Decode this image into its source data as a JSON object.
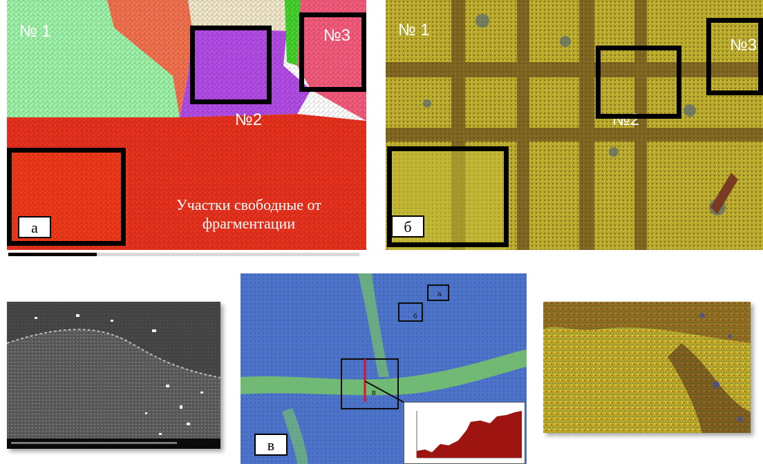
{
  "panel_a": {
    "labels": {
      "n1": "№ 1",
      "n2": "№2",
      "n3": "№3"
    },
    "free_area_label": "Участки свободные от фрагментации",
    "letter": "а"
  },
  "panel_b": {
    "labels": {
      "n1": "№ 1",
      "n2": "№2",
      "n3": "№3"
    },
    "letter": "б"
  },
  "panel_c": {
    "letter": "в",
    "sub_labels": {
      "a": "а",
      "b": "б",
      "c": "в"
    }
  },
  "colors": {
    "grain_green": "#9df2a8",
    "grain_orange": "#f2724f",
    "grain_violet": "#b34ce6",
    "grain_pink": "#f45b7b",
    "grain_red": "#e8321e",
    "map_yellow": "#b7a92c",
    "map_blue": "#4d73c9",
    "profile_red": "#9e1410"
  }
}
